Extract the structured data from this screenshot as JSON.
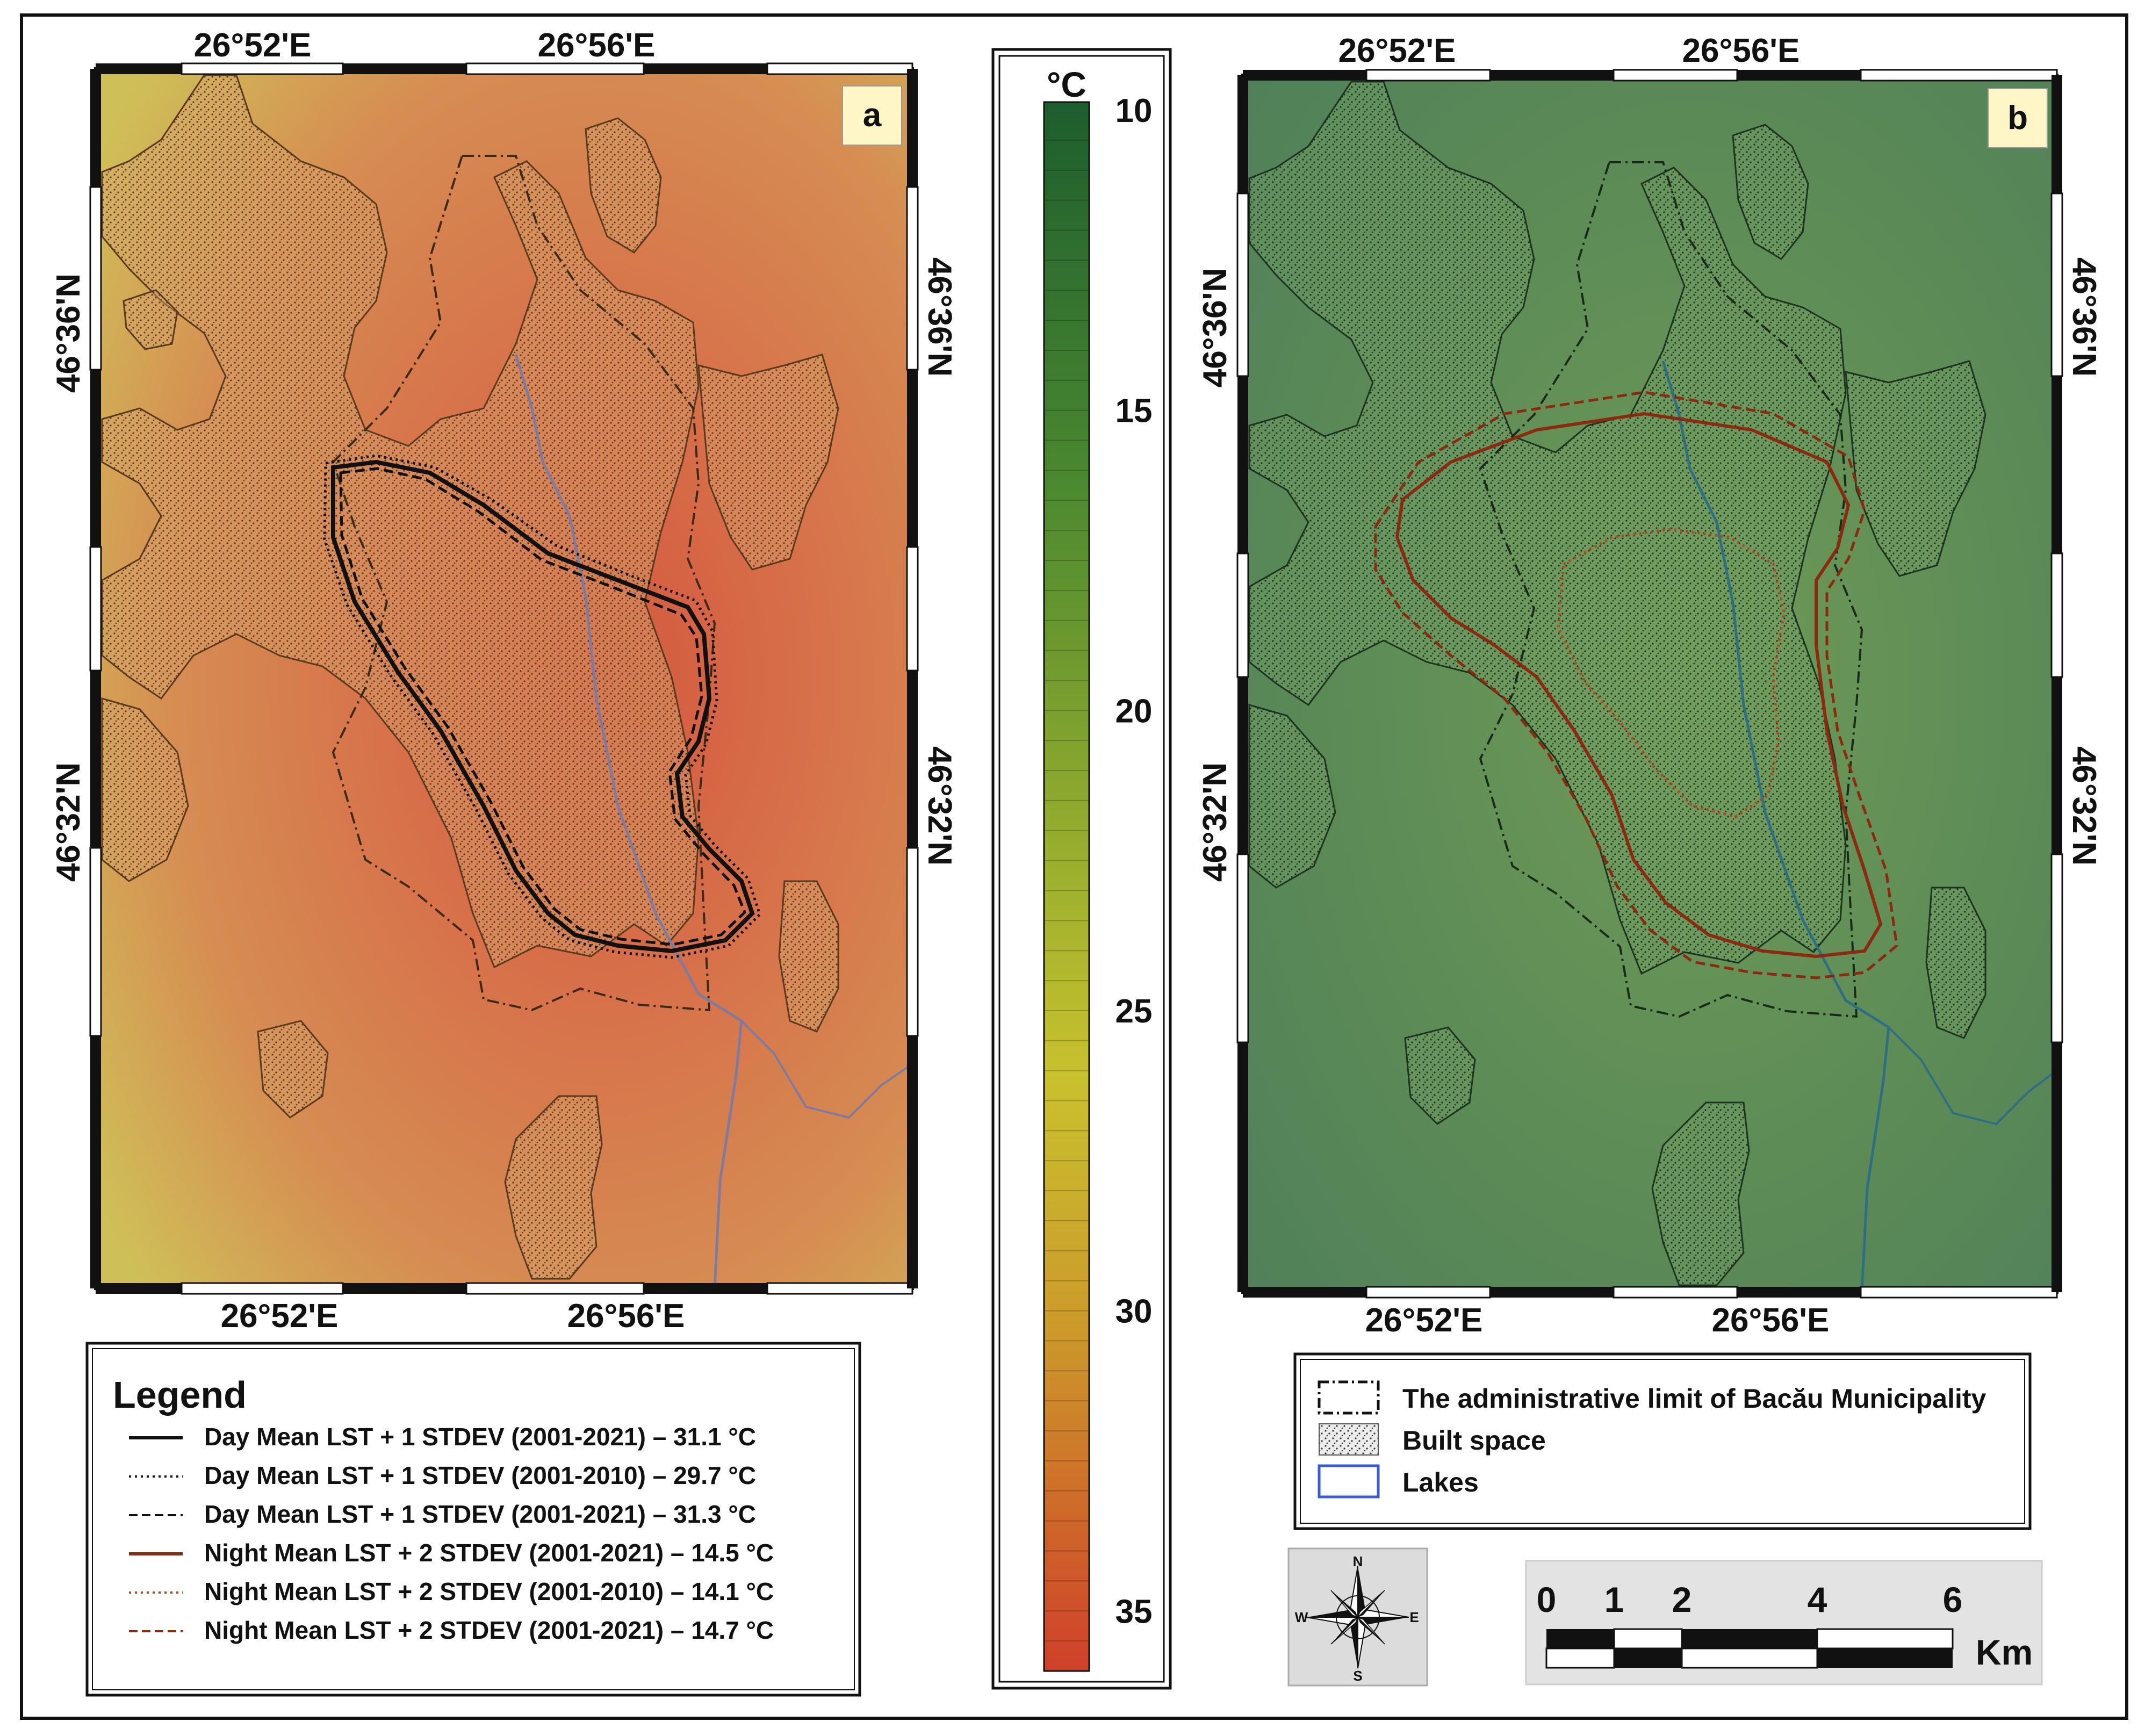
{
  "panels": {
    "a": {
      "tag": "a",
      "top_lon": [
        "26°52'E",
        "26°56'E"
      ],
      "bottom_lon": [
        "26°52'E",
        "26°56'E"
      ],
      "left_lat": [
        "46°36'N",
        "46°32'N"
      ],
      "right_lat": [
        "46°36'N",
        "46°32'N"
      ]
    },
    "b": {
      "tag": "b",
      "top_lon": [
        "26°52'E",
        "26°56'E"
      ],
      "bottom_lon": [
        "26°52'E",
        "26°56'E"
      ],
      "left_lat": [
        "46°36'N",
        "46°32'N"
      ],
      "right_lat": [
        "46°36'N",
        "46°32'N"
      ]
    }
  },
  "colorbar": {
    "unit": "°C",
    "ticks": [
      "10",
      "15",
      "20",
      "25",
      "30",
      "35"
    ],
    "min": 10,
    "max": 36,
    "colors": {
      "cold": "#1d5e2e",
      "mid": "#c9c12e",
      "hot": "#d0402a"
    }
  },
  "legend_a": {
    "title": "Legend",
    "items": [
      {
        "style": "solid",
        "color": "#111111",
        "label": "Day Mean LST + 1 STDEV (2001-2021) – 31.1 °C"
      },
      {
        "style": "dotted",
        "color": "#111111",
        "label": "Day Mean LST + 1 STDEV (2001-2010) – 29.7 °C"
      },
      {
        "style": "dashed",
        "color": "#111111",
        "label": "Day Mean LST + 1 STDEV (2001-2021) – 31.3 °C"
      },
      {
        "style": "solid",
        "color": "#8b2a10",
        "label": "Night Mean LST + 2 STDEV (2001-2021) – 14.5 °C"
      },
      {
        "style": "dotted",
        "color": "#b5451e",
        "label": "Night Mean LST + 2 STDEV (2001-2010) – 14.1 °C"
      },
      {
        "style": "dashed",
        "color": "#8b2a10",
        "label": "Night Mean LST + 2 STDEV (2001-2021) – 14.7 °C"
      }
    ]
  },
  "legend_b": {
    "items": [
      {
        "symbol": "dashdot-box",
        "label": "The administrative limit of Bacău Municipality"
      },
      {
        "symbol": "stipple-box",
        "label": "Built space"
      },
      {
        "symbol": "blue-box",
        "label": "Lakes"
      }
    ]
  },
  "compass": {
    "n": "N",
    "s": "S",
    "e": "E",
    "w": "W"
  },
  "scalebar": {
    "labels": [
      "0",
      "1",
      "2",
      "4",
      "6"
    ],
    "unit": "Km"
  }
}
